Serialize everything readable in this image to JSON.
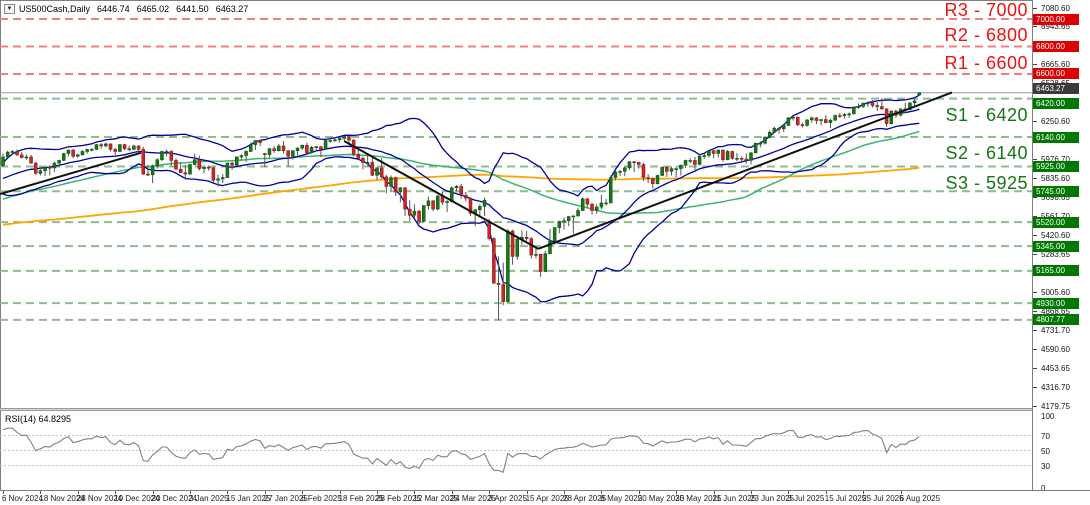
{
  "header": {
    "dropdown_icon": "▼",
    "symbol_period": "US500Cash,Daily",
    "open": "6446.74",
    "high": "6465.02",
    "low": "6441.50",
    "close": "6463.27"
  },
  "rsi": {
    "label": "RSI(14) 64.8295",
    "value": 64.8295,
    "levels": [
      70,
      50,
      30
    ],
    "axis_ticks": [
      "100",
      "70",
      "50",
      "30",
      "0"
    ]
  },
  "y_axis": {
    "ticks": [
      "7080.60",
      "6943.65",
      "6665.60",
      "6528.65",
      "6391.70",
      "6250.60",
      "6113.65",
      "5976.70",
      "5835.60",
      "5698.65",
      "5561.70",
      "5420.60",
      "5283.65",
      "5146.70",
      "5005.60",
      "4868.65",
      "4731.70",
      "4590.60",
      "4453.65",
      "4316.70",
      "4179.75"
    ]
  },
  "price_badges": [
    {
      "text": "7000.00",
      "value": 7000,
      "type": "resistance"
    },
    {
      "text": "6800.00",
      "value": 6800,
      "type": "resistance"
    },
    {
      "text": "6600.00",
      "value": 6600,
      "type": "resistance"
    },
    {
      "text": "6463.27",
      "value": 6463.27,
      "type": "current"
    },
    {
      "text": "6420.00",
      "value": 6420,
      "type": "support"
    },
    {
      "text": "6140.00",
      "value": 6140,
      "type": "support"
    },
    {
      "text": "5925.00",
      "value": 5925,
      "type": "support"
    },
    {
      "text": "5745.00",
      "value": 5745,
      "type": "support"
    },
    {
      "text": "5520.00",
      "value": 5520,
      "type": "support"
    },
    {
      "text": "5345.00",
      "value": 5345,
      "type": "support"
    },
    {
      "text": "5165.00",
      "value": 5165,
      "type": "support"
    },
    {
      "text": "4930.00",
      "value": 4930,
      "type": "support"
    },
    {
      "text": "4807.77",
      "value": 4807.77,
      "type": "support"
    }
  ],
  "sr_labels": [
    {
      "text": "R3 - 7000",
      "value": 7000,
      "position": "above",
      "type": "resistance"
    },
    {
      "text": "R2 - 6800",
      "value": 6800,
      "position": "above",
      "type": "resistance"
    },
    {
      "text": "R1 - 6600",
      "value": 6600,
      "position": "above",
      "type": "resistance"
    },
    {
      "text": "S1 - 6420",
      "value": 6420,
      "position": "below",
      "type": "support"
    },
    {
      "text": "S2 - 6140",
      "value": 6140,
      "position": "below",
      "type": "support"
    },
    {
      "text": "S3 - 5925",
      "value": 5925,
      "position": "below",
      "type": "support"
    }
  ],
  "time_axis": {
    "labels": [
      "6 Nov 2024",
      "18 Nov 2024",
      "28 Nov 2024",
      "10 Dec 2024",
      "20 Dec 2024",
      "3 Jan 2025",
      "15 Jan 2025",
      "27 Jan 2025",
      "6 Feb 2025",
      "18 Feb 2025",
      "28 Feb 2025",
      "12 Mar 2025",
      "24 Mar 2025",
      "3 Apr 2025",
      "15 Apr 2025",
      "28 Apr 2025",
      "8 May 2025",
      "20 May 2025",
      "30 May 2025",
      "11 Jun 2025",
      "23 Jun 2025",
      "3 Jul 2025",
      "15 Jul 2025",
      "25 Jul 2025",
      "6 Aug 2025"
    ]
  },
  "colors": {
    "resistance_line": "#f08080",
    "support_line": "#8fbc8f",
    "resistance_text": "#ee1111",
    "support_text": "#157515",
    "resistance_badge": "#dc0000",
    "support_badge": "#007800",
    "current_badge": "#3a3a3a",
    "candle_up": "#157a15",
    "candle_down": "#cc2727",
    "wick": "#555555",
    "bollinger": "#0000a0",
    "ma_fast": "#3cb371",
    "ma_slow": "#ffa500",
    "trendline": "#111111",
    "rsi_line": "#808080",
    "current_price_line": "#999999"
  },
  "chart_data": {
    "type": "candlestick",
    "symbol": "US500Cash",
    "timeframe": "Daily",
    "price_axis_top": 7080.6,
    "price_axis_bottom": 4179.75,
    "current_price": 6463.27,
    "levels": {
      "resistance": [
        7000,
        6800,
        6600
      ],
      "support": [
        6420,
        6140,
        5925,
        5745,
        5520,
        5345,
        5165,
        4930,
        4807.77
      ]
    },
    "indicators": {
      "bollinger": {
        "period": 20,
        "deviation": 2
      },
      "ma_fast": {
        "period": 55
      },
      "ma_slow": {
        "period": 150
      },
      "rsi": {
        "period": 14,
        "current": 64.8295
      }
    },
    "trendlines": [
      {
        "from_bar": -0.6,
        "from_price": 5725,
        "to_bar": 29.5,
        "to_price": 6025
      },
      {
        "from_bar": 73,
        "from_price": 6110,
        "to_bar": 114.5,
        "to_price": 5325
      },
      {
        "from_bar": 114.5,
        "from_price": 5325,
        "to_bar": 203,
        "to_price": 6465
      }
    ],
    "history_seed": [
      [
        0,
        5150
      ],
      [
        20,
        5300
      ],
      [
        40,
        5460
      ],
      [
        60,
        5380
      ],
      [
        80,
        5580
      ],
      [
        100,
        5750
      ],
      [
        119,
        5900
      ]
    ],
    "candles": [
      [
        5930,
        6020,
        5925,
        5995
      ],
      [
        5995,
        6040,
        5990,
        6030
      ],
      [
        6030,
        6045,
        6010,
        6035
      ],
      [
        6035,
        6050,
        6000,
        6010
      ],
      [
        6010,
        6030,
        5985,
        5990
      ],
      [
        5990,
        6015,
        5975,
        5995
      ],
      [
        5995,
        6010,
        5945,
        5950
      ],
      [
        5950,
        5960,
        5865,
        5875
      ],
      [
        5875,
        5915,
        5860,
        5895
      ],
      [
        5895,
        5925,
        5855,
        5920
      ],
      [
        5920,
        5935,
        5860,
        5915
      ],
      [
        5915,
        5960,
        5885,
        5950
      ],
      [
        5950,
        5975,
        5925,
        5970
      ],
      [
        5970,
        6025,
        5965,
        6020
      ],
      [
        6020,
        6050,
        6000,
        6045
      ],
      [
        6045,
        6055,
        5985,
        6000
      ],
      [
        6000,
        6020,
        5990,
        6010
      ],
      [
        6010,
        6045,
        6005,
        6035
      ],
      [
        6035,
        6055,
        6020,
        6050
      ],
      [
        6050,
        6060,
        6035,
        6050
      ],
      [
        6050,
        6090,
        6045,
        6085
      ],
      [
        6085,
        6095,
        6055,
        6075
      ],
      [
        6075,
        6100,
        6065,
        6090
      ],
      [
        6090,
        6095,
        6035,
        6050
      ],
      [
        6050,
        6060,
        6010,
        6035
      ],
      [
        6035,
        6090,
        6030,
        6085
      ],
      [
        6085,
        6090,
        6045,
        6055
      ],
      [
        6055,
        6080,
        6040,
        6050
      ],
      [
        6050,
        6085,
        6045,
        6075
      ],
      [
        6075,
        6080,
        6030,
        6050
      ],
      [
        6050,
        6070,
        5865,
        5870
      ],
      [
        5870,
        5935,
        5855,
        5865
      ],
      [
        5865,
        5940,
        5805,
        5930
      ],
      [
        5930,
        5985,
        5910,
        5975
      ],
      [
        5975,
        6040,
        5965,
        6035
      ],
      [
        6035,
        6050,
        6000,
        6035
      ],
      [
        6035,
        6045,
        5930,
        5970
      ],
      [
        5970,
        5985,
        5905,
        5905
      ],
      [
        5905,
        5955,
        5880,
        5880
      ],
      [
        5880,
        5935,
        5830,
        5870
      ],
      [
        5870,
        5945,
        5865,
        5940
      ],
      [
        5940,
        6020,
        5935,
        5975
      ],
      [
        5975,
        6005,
        5895,
        5910
      ],
      [
        5910,
        5935,
        5875,
        5920
      ],
      [
        5920,
        5930,
        5895,
        5915
      ],
      [
        5915,
        5925,
        5810,
        5825
      ],
      [
        5825,
        5865,
        5780,
        5835
      ],
      [
        5835,
        5870,
        5805,
        5845
      ],
      [
        5845,
        5955,
        5840,
        5950
      ],
      [
        5950,
        5960,
        5900,
        5935
      ],
      [
        5935,
        6000,
        5930,
        5995
      ],
      [
        5995,
        6015,
        5975,
        6005
      ],
      [
        6005,
        6045,
        5960,
        6035
      ],
      [
        6035,
        6100,
        6030,
        6085
      ],
      [
        6085,
        6115,
        6045,
        6115
      ],
      [
        6115,
        6120,
        6075,
        6100
      ],
      [
        6020,
        6025,
        5920,
        6012
      ],
      [
        6012,
        6060,
        5990,
        6055
      ],
      [
        6055,
        6075,
        6025,
        6040
      ],
      [
        6040,
        6090,
        6035,
        6075
      ],
      [
        6075,
        6110,
        6020,
        6040
      ],
      [
        6040,
        6045,
        5925,
        6000
      ],
      [
        6000,
        6045,
        5975,
        6040
      ],
      [
        6040,
        6065,
        6005,
        6060
      ],
      [
        6060,
        6085,
        6045,
        6080
      ],
      [
        6080,
        6100,
        6020,
        6025
      ],
      [
        6025,
        6075,
        6020,
        6065
      ],
      [
        6065,
        6075,
        6035,
        6070
      ],
      [
        6070,
        6075,
        5995,
        6050
      ],
      [
        6050,
        6120,
        6045,
        6115
      ],
      [
        6115,
        6130,
        6100,
        6115
      ],
      [
        6115,
        6135,
        6105,
        6120
      ],
      [
        6120,
        6135,
        6100,
        6130
      ],
      [
        6130,
        6147,
        6110,
        6144
      ],
      [
        6144,
        6150,
        6085,
        6118
      ],
      [
        6118,
        6125,
        6000,
        6015
      ],
      [
        6015,
        6045,
        5980,
        5985
      ],
      [
        5985,
        6000,
        5905,
        5955
      ],
      [
        5955,
        6010,
        5930,
        5955
      ],
      [
        5955,
        5995,
        5855,
        5861
      ],
      [
        5861,
        5920,
        5830,
        5915
      ],
      [
        5915,
        5985,
        5835,
        5850
      ],
      [
        5850,
        5865,
        5730,
        5780
      ],
      [
        5780,
        5860,
        5745,
        5845
      ],
      [
        5845,
        5850,
        5710,
        5740
      ],
      [
        5740,
        5775,
        5665,
        5770
      ],
      [
        5770,
        5775,
        5565,
        5615
      ],
      [
        5615,
        5680,
        5530,
        5570
      ],
      [
        5570,
        5650,
        5545,
        5600
      ],
      [
        5600,
        5610,
        5505,
        5525
      ],
      [
        5525,
        5645,
        5520,
        5640
      ],
      [
        5640,
        5705,
        5610,
        5675
      ],
      [
        5675,
        5680,
        5600,
        5615
      ],
      [
        5615,
        5720,
        5605,
        5710
      ],
      [
        5710,
        5740,
        5645,
        5665
      ],
      [
        5665,
        5680,
        5595,
        5670
      ],
      [
        5670,
        5780,
        5665,
        5770
      ],
      [
        5770,
        5790,
        5745,
        5780
      ],
      [
        5780,
        5800,
        5690,
        5715
      ],
      [
        5715,
        5740,
        5670,
        5695
      ],
      [
        5695,
        5700,
        5565,
        5585
      ],
      [
        5585,
        5615,
        5490,
        5610
      ],
      [
        5610,
        5650,
        5555,
        5635
      ],
      [
        5635,
        5700,
        5565,
        5680
      ],
      [
        5515,
        5545,
        5385,
        5400
      ],
      [
        5400,
        5410,
        5070,
        5075
      ],
      [
        5075,
        5270,
        4808,
        5065
      ],
      [
        5065,
        5225,
        4915,
        4940
      ],
      [
        4940,
        5470,
        4935,
        5455
      ],
      [
        5455,
        5465,
        5210,
        5270
      ],
      [
        5270,
        5420,
        5245,
        5395
      ],
      [
        5395,
        5460,
        5355,
        5410
      ],
      [
        5410,
        5455,
        5385,
        5400
      ],
      [
        5400,
        5410,
        5255,
        5280
      ],
      [
        5280,
        5330,
        5255,
        5285
      ],
      [
        5285,
        5290,
        5120,
        5160
      ],
      [
        5160,
        5310,
        5155,
        5290
      ],
      [
        5290,
        5470,
        5285,
        5380
      ],
      [
        5380,
        5485,
        5355,
        5480
      ],
      [
        5480,
        5530,
        5440,
        5525
      ],
      [
        5525,
        5555,
        5465,
        5530
      ],
      [
        5530,
        5565,
        5490,
        5560
      ],
      [
        5560,
        5570,
        5435,
        5565
      ],
      [
        5565,
        5625,
        5560,
        5605
      ],
      [
        5605,
        5700,
        5600,
        5690
      ],
      [
        5690,
        5695,
        5625,
        5650
      ],
      [
        5650,
        5660,
        5575,
        5605
      ],
      [
        5605,
        5650,
        5580,
        5630
      ],
      [
        5630,
        5720,
        5615,
        5660
      ],
      [
        5660,
        5690,
        5640,
        5660
      ],
      [
        5660,
        5860,
        5655,
        5845
      ],
      [
        5845,
        5895,
        5825,
        5885
      ],
      [
        5885,
        5900,
        5855,
        5890
      ],
      [
        5890,
        5925,
        5855,
        5915
      ],
      [
        5915,
        5965,
        5900,
        5960
      ],
      [
        5960,
        5965,
        5885,
        5955
      ],
      [
        5955,
        5960,
        5910,
        5940
      ],
      [
        5940,
        5950,
        5820,
        5845
      ],
      [
        5845,
        5870,
        5805,
        5840
      ],
      [
        5840,
        5845,
        5765,
        5800
      ],
      [
        5800,
        5865,
        5795,
        5860
      ],
      [
        5860,
        5925,
        5855,
        5920
      ],
      [
        5920,
        5925,
        5850,
        5890
      ],
      [
        5890,
        5925,
        5860,
        5910
      ],
      [
        5910,
        5920,
        5845,
        5910
      ],
      [
        5910,
        5940,
        5860,
        5935
      ],
      [
        5935,
        5975,
        5915,
        5970
      ],
      [
        5970,
        5985,
        5950,
        5970
      ],
      [
        5970,
        5995,
        5900,
        5940
      ],
      [
        5940,
        6010,
        5935,
        6000
      ],
      [
        6000,
        6020,
        5980,
        6005
      ],
      [
        6005,
        6045,
        5990,
        6040
      ],
      [
        6040,
        6060,
        5985,
        6020
      ],
      [
        6020,
        6050,
        5990,
        6045
      ],
      [
        6045,
        6050,
        5960,
        5975
      ],
      [
        5975,
        6045,
        5970,
        6035
      ],
      [
        6035,
        6040,
        5975,
        5985
      ],
      [
        5985,
        6025,
        5965,
        5985
      ],
      [
        5985,
        6000,
        5950,
        5980
      ],
      [
        5980,
        6020,
        5945,
        5970
      ],
      [
        5970,
        6030,
        5940,
        6025
      ],
      [
        6025,
        6100,
        6020,
        6095
      ],
      [
        6095,
        6110,
        6065,
        6095
      ],
      [
        6095,
        6145,
        6085,
        6140
      ],
      [
        6140,
        6190,
        6130,
        6175
      ],
      [
        6175,
        6215,
        6170,
        6205
      ],
      [
        6205,
        6215,
        6165,
        6200
      ],
      [
        6200,
        6230,
        6175,
        6225
      ],
      [
        6225,
        6285,
        6220,
        6280
      ],
      [
        6280,
        6290,
        6260,
        6285
      ],
      [
        6285,
        6290,
        6220,
        6230
      ],
      [
        6230,
        6245,
        6210,
        6225
      ],
      [
        6225,
        6270,
        6215,
        6265
      ],
      [
        6265,
        6290,
        6245,
        6280
      ],
      [
        6280,
        6285,
        6235,
        6260
      ],
      [
        6260,
        6270,
        6225,
        6268
      ],
      [
        6268,
        6300,
        6240,
        6245
      ],
      [
        6245,
        6275,
        6205,
        6263
      ],
      [
        6263,
        6305,
        6255,
        6297
      ],
      [
        6297,
        6315,
        6280,
        6296
      ],
      [
        6296,
        6315,
        6275,
        6305
      ],
      [
        6305,
        6320,
        6280,
        6309
      ],
      [
        6309,
        6365,
        6305,
        6358
      ],
      [
        6358,
        6385,
        6345,
        6363
      ],
      [
        6363,
        6390,
        6350,
        6388
      ],
      [
        6388,
        6400,
        6360,
        6389
      ],
      [
        6389,
        6410,
        6355,
        6370
      ],
      [
        6370,
        6395,
        6330,
        6362
      ],
      [
        6362,
        6425,
        6340,
        6345
      ],
      [
        6345,
        6350,
        6215,
        6238
      ],
      [
        6238,
        6335,
        6230,
        6329
      ],
      [
        6329,
        6340,
        6280,
        6299
      ],
      [
        6299,
        6350,
        6290,
        6345
      ],
      [
        6345,
        6390,
        6315,
        6340
      ],
      [
        6340,
        6395,
        6335,
        6389
      ],
      [
        6389,
        6420,
        6360,
        6403
      ],
      [
        6446.74,
        6465.02,
        6441.5,
        6463.27
      ]
    ]
  }
}
